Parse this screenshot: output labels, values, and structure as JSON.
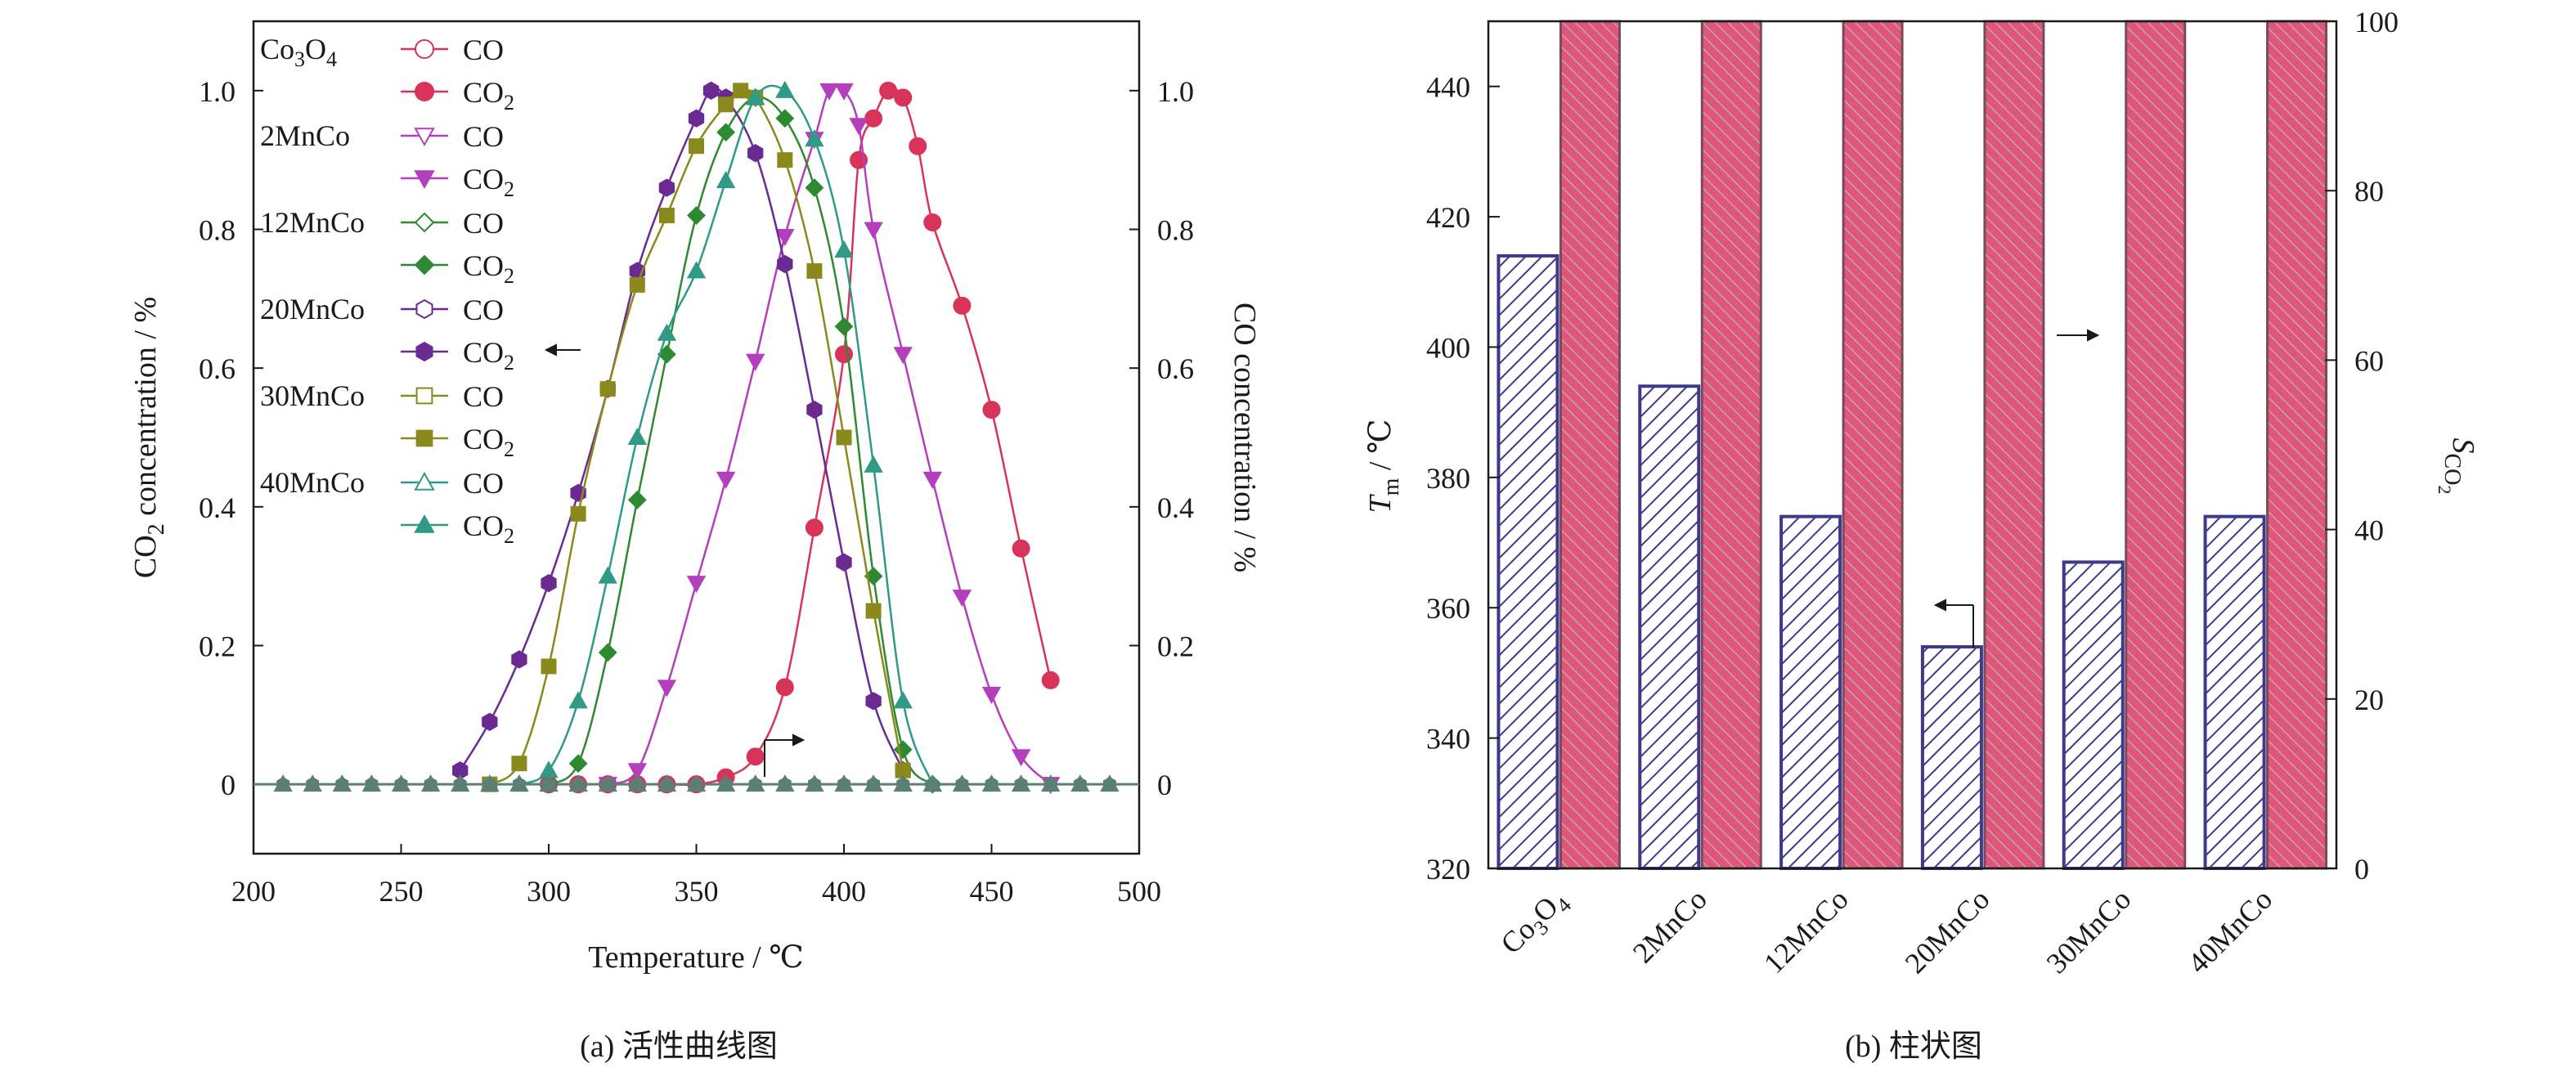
{
  "captions": {
    "left": "(a) 活性曲线图",
    "right": "(b) 柱状图"
  },
  "colors": {
    "Co3O4": "#d8345a",
    "2MnCo": "#b43fbd",
    "12MnCo": "#2e8a32",
    "20MnCo": "#6b2a92",
    "30MnCo": "#8a8a1c",
    "40MnCo": "#2f9a86",
    "bar_tm": "#3d3a8c",
    "bar_s": "#d8345a"
  },
  "chart_data": [
    {
      "type": "line",
      "title": "",
      "xlabel": "Temperature / ℃",
      "ylabel_left_main": "CO",
      "ylabel_left_sub": "2",
      "ylabel_left_rest": " concentration / %",
      "ylabel_right": "CO concentration / %",
      "xlim": [
        200,
        500
      ],
      "ylim": [
        -0.1,
        1.1
      ],
      "x_ticks": [
        200,
        250,
        300,
        350,
        400,
        450,
        500
      ],
      "y_ticks": [
        "0",
        "0.2",
        "0.4",
        "0.6",
        "0.8",
        "1.0"
      ],
      "y_tick_values": [
        0,
        0.2,
        0.4,
        0.6,
        0.8,
        1.0
      ],
      "grid": false,
      "legend_position": "top-left",
      "legend": [
        {
          "group": "Co3O4",
          "group_main": "Co",
          "group_sub1": "3",
          "group_mid": "O",
          "group_sub2": "4",
          "entries": [
            {
              "main": "CO",
              "sub": "",
              "marker": "circle-open"
            },
            {
              "main": "CO",
              "sub": "2",
              "marker": "circle"
            }
          ]
        },
        {
          "group": "2MnCo",
          "group_main": "2MnCo",
          "entries": [
            {
              "main": "CO",
              "sub": "",
              "marker": "triangle-down-open"
            },
            {
              "main": "CO",
              "sub": "2",
              "marker": "triangle-down"
            }
          ]
        },
        {
          "group": "12MnCo",
          "group_main": "12MnCo",
          "entries": [
            {
              "main": "CO",
              "sub": "",
              "marker": "diamond-open"
            },
            {
              "main": "CO",
              "sub": "2",
              "marker": "diamond"
            }
          ]
        },
        {
          "group": "20MnCo",
          "group_main": "20MnCo",
          "entries": [
            {
              "main": "CO",
              "sub": "",
              "marker": "hexagon-open"
            },
            {
              "main": "CO",
              "sub": "2",
              "marker": "hexagon"
            }
          ]
        },
        {
          "group": "30MnCo",
          "group_main": "30MnCo",
          "entries": [
            {
              "main": "CO",
              "sub": "",
              "marker": "square-open"
            },
            {
              "main": "CO",
              "sub": "2",
              "marker": "square"
            }
          ]
        },
        {
          "group": "40MnCo",
          "group_main": "40MnCo",
          "entries": [
            {
              "main": "CO",
              "sub": "",
              "marker": "triangle-up-open"
            },
            {
              "main": "CO",
              "sub": "2",
              "marker": "triangle-up"
            }
          ]
        }
      ],
      "series": [
        {
          "group": "Co3O4",
          "marker": "circle",
          "x": [
            300,
            310,
            320,
            330,
            340,
            350,
            360,
            370,
            380,
            390,
            400,
            405,
            410,
            415,
            420,
            425,
            430,
            440,
            450,
            460,
            470
          ],
          "values": [
            0,
            0,
            0,
            0,
            0,
            0,
            0.01,
            0.04,
            0.14,
            0.37,
            0.62,
            0.9,
            0.96,
            1.0,
            0.99,
            0.92,
            0.81,
            0.69,
            0.54,
            0.34,
            0.15
          ]
        },
        {
          "group": "2MnCo",
          "marker": "triangle-down",
          "x": [
            320,
            330,
            340,
            350,
            360,
            370,
            380,
            390,
            395,
            400,
            405,
            410,
            420,
            430,
            440,
            450,
            460,
            470
          ],
          "values": [
            0,
            0.02,
            0.14,
            0.29,
            0.44,
            0.61,
            0.79,
            0.93,
            1.0,
            1.0,
            0.95,
            0.8,
            0.62,
            0.44,
            0.27,
            0.13,
            0.04,
            0
          ],
          "x_fall": [
            395,
            400,
            410,
            420,
            430,
            440,
            450,
            460,
            470
          ],
          "fall": [
            1.0,
            1.0,
            0.8,
            0.62,
            0.44,
            0.27,
            0.13,
            0.04,
            0
          ]
        },
        {
          "group": "12MnCo",
          "marker": "diamond",
          "x": [
            300,
            310,
            320,
            330,
            340,
            350,
            360,
            370,
            380,
            390,
            400,
            410,
            420,
            430
          ],
          "values": [
            0,
            0.03,
            0.19,
            0.41,
            0.62,
            0.82,
            0.94,
            0.99,
            0.96,
            0.86,
            0.66,
            0.3,
            0.05,
            0
          ]
        },
        {
          "group": "20MnCo",
          "marker": "hexagon",
          "x": [
            270,
            280,
            290,
            300,
            310,
            320,
            330,
            340,
            350,
            355,
            360,
            370,
            380,
            390,
            400,
            410,
            420
          ],
          "values": [
            0.02,
            0.09,
            0.18,
            0.29,
            0.42,
            0.57,
            0.74,
            0.86,
            0.96,
            1.0,
            0.99,
            0.91,
            0.75,
            0.54,
            0.32,
            0.12,
            0.02
          ]
        },
        {
          "group": "30MnCo",
          "marker": "square",
          "x": [
            280,
            290,
            300,
            310,
            320,
            330,
            340,
            350,
            360,
            365,
            370,
            380,
            390,
            400,
            410,
            420
          ],
          "values": [
            0,
            0.03,
            0.17,
            0.39,
            0.57,
            0.72,
            0.82,
            0.92,
            0.98,
            1.0,
            0.99,
            0.9,
            0.74,
            0.5,
            0.25,
            0.02
          ]
        },
        {
          "group": "40MnCo",
          "marker": "triangle-up",
          "x": [
            290,
            300,
            310,
            320,
            330,
            340,
            350,
            360,
            370,
            380,
            390,
            400,
            410,
            420,
            430
          ],
          "values": [
            0,
            0.02,
            0.12,
            0.3,
            0.5,
            0.65,
            0.74,
            0.87,
            0.99,
            1.0,
            0.93,
            0.77,
            0.46,
            0.12,
            0
          ]
        }
      ],
      "co_baseline": 0
    },
    {
      "type": "bar",
      "title": "",
      "ylabel_left_main": "T",
      "ylabel_left_sub": "m",
      "ylabel_left_rest": " / ℃",
      "ylabel_right_main": "S",
      "ylabel_right_sub": "CO",
      "ylabel_right_subsub": "2",
      "ylim_left": [
        320,
        450
      ],
      "ylim_right": [
        0,
        100
      ],
      "y_ticks_left": [
        320,
        340,
        360,
        380,
        400,
        420,
        440
      ],
      "y_ticks_right": [
        0,
        20,
        40,
        60,
        80,
        100
      ],
      "categories": [
        "Co3O4",
        "2MnCo",
        "12MnCo",
        "20MnCo",
        "30MnCo",
        "40MnCo"
      ],
      "series": [
        {
          "name": "Tm",
          "axis": "left",
          "values": [
            414,
            394,
            374,
            354,
            367,
            374
          ]
        },
        {
          "name": "SCO2",
          "axis": "right",
          "values": [
            100,
            100,
            100,
            100,
            100,
            100
          ]
        }
      ]
    }
  ]
}
